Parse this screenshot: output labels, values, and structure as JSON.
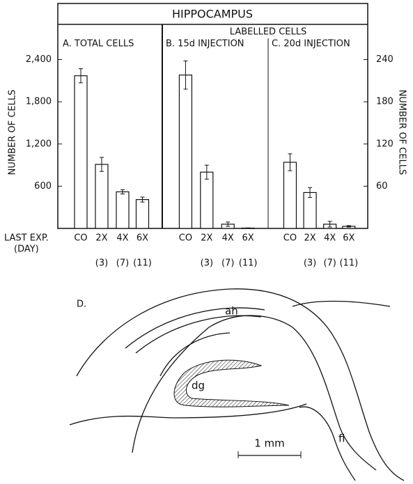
{
  "chart_data": [
    {
      "type": "bar",
      "title": "HIPPOCAMPUS",
      "subtitle": "A. TOTAL CELLS",
      "ylabel": "NUMBER OF CELLS",
      "xlabel": [
        "LAST EXP.",
        "(DAY)"
      ],
      "categories": [
        "CO",
        "2X",
        "4X",
        "6X"
      ],
      "sublabels": [
        null,
        "(3)",
        "(7)",
        "(11)"
      ],
      "values": [
        2170,
        910,
        520,
        410
      ],
      "errors": [
        100,
        100,
        30,
        35
      ],
      "color": "#ffffff",
      "ylim": [
        0,
        2900
      ],
      "yticks": [
        600,
        {
          "value": 1200,
          "label": "1,200"
        },
        {
          "value": 1800,
          "label": "1,800"
        },
        {
          "value": 2400,
          "label": "2,400"
        }
      ]
    },
    {
      "type": "bar",
      "group_title": "LABELLED CELLS",
      "subtitle": "B. 15d INJECTION",
      "categories": [
        "CO",
        "2X",
        "4X",
        "6X"
      ],
      "sublabels": [
        null,
        "(3)",
        "(7)",
        "(11)"
      ],
      "values": [
        218,
        80,
        6,
        0.5
      ],
      "errors": [
        20,
        10,
        3,
        0.3
      ],
      "color": "#ffffff",
      "y2lim": [
        0,
        290
      ]
    },
    {
      "type": "bar",
      "subtitle": "C. 20d INJECTION",
      "y2label": "NUMBER OF CELLS",
      "categories": [
        "CO",
        "2X",
        "4X",
        "6X"
      ],
      "sublabels": [
        null,
        "(3)",
        "(7)",
        "(11)"
      ],
      "values": [
        94,
        51,
        6,
        3
      ],
      "errors": [
        12,
        7,
        4,
        1
      ],
      "color": "#ffffff",
      "y2lim": [
        0,
        290
      ],
      "y2ticks": [
        60,
        120,
        180,
        240
      ]
    }
  ],
  "diagram": {
    "panel_label": "D.",
    "labels": [
      "ah",
      "dg",
      "fi"
    ],
    "scale_bar": "1 mm"
  }
}
